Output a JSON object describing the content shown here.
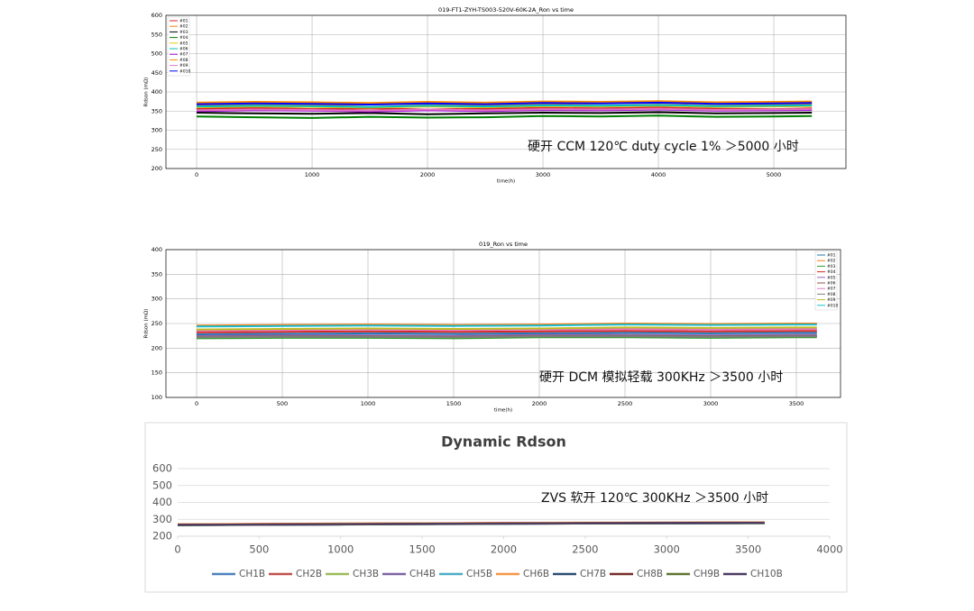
{
  "chart_data": [
    {
      "type": "line",
      "title": "019-FT1-ZYH-TS003-520V-60K-2A_Ron vs time",
      "x_label": "time(h)",
      "y_label": "Rdson (mΩ)",
      "annotation": "硬开 CCM 120℃  duty cycle 1%   ＞5000 小时",
      "x": [
        0,
        500,
        1000,
        1500,
        2000,
        2500,
        3000,
        3500,
        4000,
        4500,
        5000,
        5330
      ],
      "xlim": [
        -266,
        5625
      ],
      "xticks": [
        0,
        1000,
        2000,
        3000,
        4000,
        5000
      ],
      "ylim": [
        200,
        600
      ],
      "yticks": [
        200,
        250,
        300,
        350,
        400,
        450,
        500,
        550,
        600
      ],
      "grid": true,
      "legend": "upper-left",
      "series": [
        {
          "name": "#01",
          "color": "#d62728",
          "values": [
            356,
            358,
            355,
            357,
            354,
            356,
            358,
            357,
            359,
            356,
            355,
            357
          ]
        },
        {
          "name": "#02",
          "color": "#ff7f0e",
          "values": [
            366,
            368,
            365,
            367,
            369,
            366,
            368,
            370,
            371,
            368,
            367,
            369
          ]
        },
        {
          "name": "#03",
          "color": "#000000",
          "values": [
            346,
            344,
            343,
            345,
            342,
            344,
            346,
            345,
            347,
            344,
            345,
            346
          ]
        },
        {
          "name": "#04",
          "color": "#008000",
          "values": [
            336,
            334,
            332,
            335,
            333,
            334,
            337,
            336,
            338,
            335,
            336,
            337
          ]
        },
        {
          "name": "#05",
          "color": "#e6c800",
          "values": [
            360,
            362,
            361,
            359,
            362,
            360,
            363,
            362,
            364,
            361,
            362,
            363
          ]
        },
        {
          "name": "#06",
          "color": "#00bfbf",
          "values": [
            362,
            364,
            363,
            361,
            364,
            362,
            365,
            364,
            366,
            363,
            364,
            365
          ]
        },
        {
          "name": "#07",
          "color": "#9400d3",
          "values": [
            350,
            352,
            351,
            349,
            352,
            350,
            353,
            352,
            354,
            351,
            352,
            353
          ]
        },
        {
          "name": "#08",
          "color": "#ff8c00",
          "values": [
            372,
            374,
            373,
            371,
            374,
            372,
            375,
            374,
            376,
            373,
            374,
            375
          ]
        },
        {
          "name": "#09",
          "color": "#e377c2",
          "values": [
            352,
            354,
            353,
            351,
            354,
            352,
            355,
            354,
            356,
            353,
            354,
            355
          ]
        },
        {
          "name": "#010",
          "color": "#0000ff",
          "values": [
            368,
            370,
            369,
            367,
            370,
            368,
            371,
            370,
            372,
            369,
            370,
            371
          ]
        }
      ]
    },
    {
      "type": "line",
      "title": "019_Ron vs time",
      "x_label": "time(h)",
      "y_label": "Rdson (mΩ)",
      "annotation": "硬开 DCM  模拟轻载  300KHz   ＞3500 小时",
      "x": [
        0,
        500,
        1000,
        1500,
        2000,
        2500,
        3000,
        3500,
        3620
      ],
      "xlim": [
        -179,
        3758
      ],
      "xticks": [
        0,
        500,
        1000,
        1500,
        2000,
        2500,
        3000,
        3500
      ],
      "ylim": [
        100,
        400
      ],
      "yticks": [
        100,
        150,
        200,
        250,
        300,
        350,
        400
      ],
      "grid": true,
      "legend": "upper-right",
      "series": [
        {
          "name": "#01",
          "color": "#1f77b4",
          "values": [
            228,
            229,
            230,
            229,
            230,
            231,
            230,
            231,
            231
          ]
        },
        {
          "name": "#02",
          "color": "#ff7f0e",
          "values": [
            246,
            247,
            248,
            247,
            248,
            250,
            249,
            250,
            250
          ]
        },
        {
          "name": "#03",
          "color": "#2ca02c",
          "values": [
            220,
            221,
            221,
            220,
            222,
            222,
            221,
            222,
            222
          ]
        },
        {
          "name": "#04",
          "color": "#d62728",
          "values": [
            232,
            233,
            234,
            233,
            234,
            235,
            234,
            235,
            235
          ]
        },
        {
          "name": "#05",
          "color": "#9467bd",
          "values": [
            225,
            226,
            226,
            225,
            227,
            227,
            226,
            227,
            227
          ]
        },
        {
          "name": "#06",
          "color": "#8c564b",
          "values": [
            223,
            224,
            224,
            223,
            225,
            225,
            224,
            225,
            225
          ]
        },
        {
          "name": "#07",
          "color": "#e377c2",
          "values": [
            236,
            237,
            238,
            237,
            238,
            239,
            238,
            239,
            239
          ]
        },
        {
          "name": "#08",
          "color": "#7f7f7f",
          "values": [
            222,
            223,
            223,
            222,
            224,
            224,
            223,
            224,
            224
          ]
        },
        {
          "name": "#09",
          "color": "#bcbd22",
          "values": [
            238,
            239,
            240,
            239,
            240,
            242,
            241,
            242,
            242
          ]
        },
        {
          "name": "#010",
          "color": "#17becf",
          "values": [
            244,
            245,
            246,
            245,
            246,
            248,
            247,
            248,
            248
          ]
        }
      ]
    },
    {
      "type": "line",
      "title": "Dynamic Rdson",
      "annotation": "ZVS 软开  120℃  300KHz   ＞3500 小时",
      "x": [
        0,
        500,
        1000,
        1500,
        2000,
        2500,
        3000,
        3500,
        3600
      ],
      "xlim": [
        0,
        4000
      ],
      "xticks": [
        0,
        500,
        1000,
        1500,
        2000,
        2500,
        3000,
        3500,
        4000
      ],
      "ylim": [
        200,
        600
      ],
      "yticks": [
        200,
        300,
        400,
        500,
        600
      ],
      "grid": true,
      "legend": "bottom",
      "series": [
        {
          "name": "CH1B",
          "color": "#4f81bd",
          "values": [
            268,
            270,
            272,
            274,
            276,
            278,
            279,
            280,
            280
          ]
        },
        {
          "name": "CH2B",
          "color": "#c0504d",
          "values": [
            270,
            272,
            274,
            276,
            278,
            279,
            280,
            281,
            281
          ]
        },
        {
          "name": "CH3B",
          "color": "#9bbb59",
          "values": [
            267,
            269,
            271,
            273,
            275,
            277,
            278,
            279,
            279
          ]
        },
        {
          "name": "CH4B",
          "color": "#8064a2",
          "values": [
            266,
            268,
            270,
            272,
            274,
            276,
            277,
            278,
            278
          ]
        },
        {
          "name": "CH5B",
          "color": "#4bacc6",
          "values": [
            269,
            271,
            273,
            275,
            277,
            279,
            280,
            281,
            281
          ]
        },
        {
          "name": "CH6B",
          "color": "#f79646",
          "values": [
            271,
            273,
            275,
            277,
            279,
            280,
            281,
            282,
            282
          ]
        },
        {
          "name": "CH7B",
          "color": "#2c4d75",
          "values": [
            265,
            267,
            269,
            271,
            273,
            275,
            276,
            277,
            277
          ]
        },
        {
          "name": "CH8B",
          "color": "#772c2a",
          "values": [
            268,
            270,
            272,
            274,
            276,
            278,
            279,
            280,
            280
          ]
        },
        {
          "name": "CH9B",
          "color": "#5f7530",
          "values": [
            266,
            268,
            270,
            272,
            274,
            276,
            277,
            278,
            278
          ]
        },
        {
          "name": "CH10B",
          "color": "#4d3b62",
          "values": [
            267,
            269,
            271,
            273,
            275,
            277,
            278,
            279,
            279
          ]
        }
      ]
    }
  ]
}
